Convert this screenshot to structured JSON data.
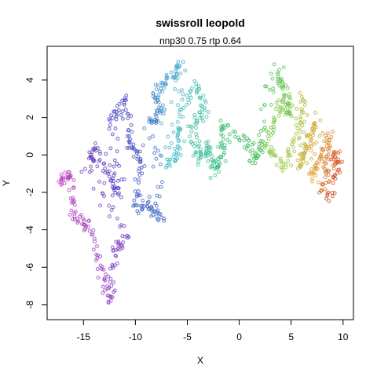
{
  "chart_data": {
    "type": "scatter",
    "title": "swissroll leopold",
    "subtitle": "nnp30 0.75 rtp 0.64",
    "xlabel": "X",
    "ylabel": "Y",
    "xlim": [
      -18.5,
      11
    ],
    "ylim": [
      -8.8,
      5.8
    ],
    "x_ticks": [
      -15,
      -10,
      -5,
      0,
      5,
      10
    ],
    "x_tick_labels": [
      "-15",
      "-10",
      "-5",
      "0",
      "5",
      "10"
    ],
    "y_ticks": [
      -8,
      -6,
      -4,
      -2,
      0,
      2,
      4
    ],
    "y_tick_labels": [
      "-8",
      "-6",
      "-4",
      "-2",
      "0",
      "2",
      "4"
    ],
    "grid": false,
    "legend": "none",
    "colormap": "rainbow: magenta (low t) → blue → cyan → green → yellow → red (high t)",
    "point_style": "small open circles, semi-transparent",
    "point_count_approx": 1000,
    "regions": [
      {
        "desc": "magenta tail",
        "x_range": [
          -17.5,
          -12
        ],
        "y_range": [
          -8.3,
          0
        ]
      },
      {
        "desc": "purple/blue body",
        "x_range": [
          -15,
          -7
        ],
        "y_range": [
          -5.5,
          3.5
        ]
      },
      {
        "desc": "blue/cyan arm",
        "x_range": [
          -9,
          -2
        ],
        "y_range": [
          -4,
          5.3
        ]
      },
      {
        "desc": "green/teal cluster",
        "x_range": [
          1,
          7
        ],
        "y_range": [
          -1.5,
          4.8
        ]
      },
      {
        "desc": "yellow/orange/red edge",
        "x_range": [
          6,
          10
        ],
        "y_range": [
          -2.8,
          2
        ]
      }
    ]
  }
}
